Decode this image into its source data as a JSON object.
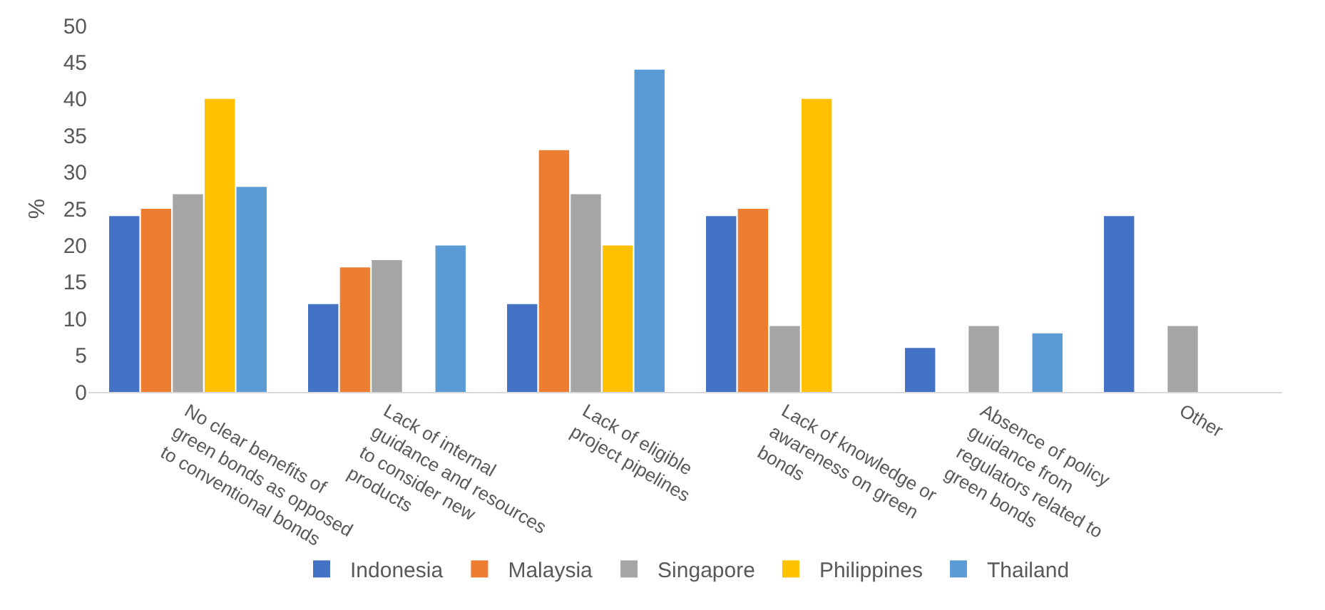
{
  "chart_data": {
    "type": "bar",
    "ylabel": "%",
    "categories": [
      "No clear benefits of green bonds as opposed to conventional bonds",
      "Lack of internal guidance and resources to consider new products",
      "Lack of eligible project pipelines",
      "Lack of knowledge or awareness on green bonds",
      "Absence of policy guidance from regulators related to green bonds",
      "Other"
    ],
    "series": [
      {
        "name": "Indonesia",
        "color": "#4472c4",
        "values": [
          24,
          12,
          12,
          24,
          6,
          24
        ]
      },
      {
        "name": "Malaysia",
        "color": "#ed7d31",
        "values": [
          25,
          17,
          33,
          25,
          null,
          null
        ]
      },
      {
        "name": "Singapore",
        "color": "#a5a5a5",
        "values": [
          27,
          18,
          27,
          9,
          9,
          9
        ]
      },
      {
        "name": "Philippines",
        "color": "#ffc000",
        "values": [
          40,
          null,
          20,
          40,
          null,
          null
        ]
      },
      {
        "name": "Thailand",
        "color": "#5b9bd5",
        "values": [
          28,
          20,
          44,
          null,
          8,
          null
        ]
      }
    ],
    "ylim": [
      0,
      50
    ],
    "yticks": [
      0,
      5,
      10,
      15,
      20,
      25,
      30,
      35,
      40,
      45,
      50
    ],
    "grid": false,
    "legend": "bottom"
  }
}
